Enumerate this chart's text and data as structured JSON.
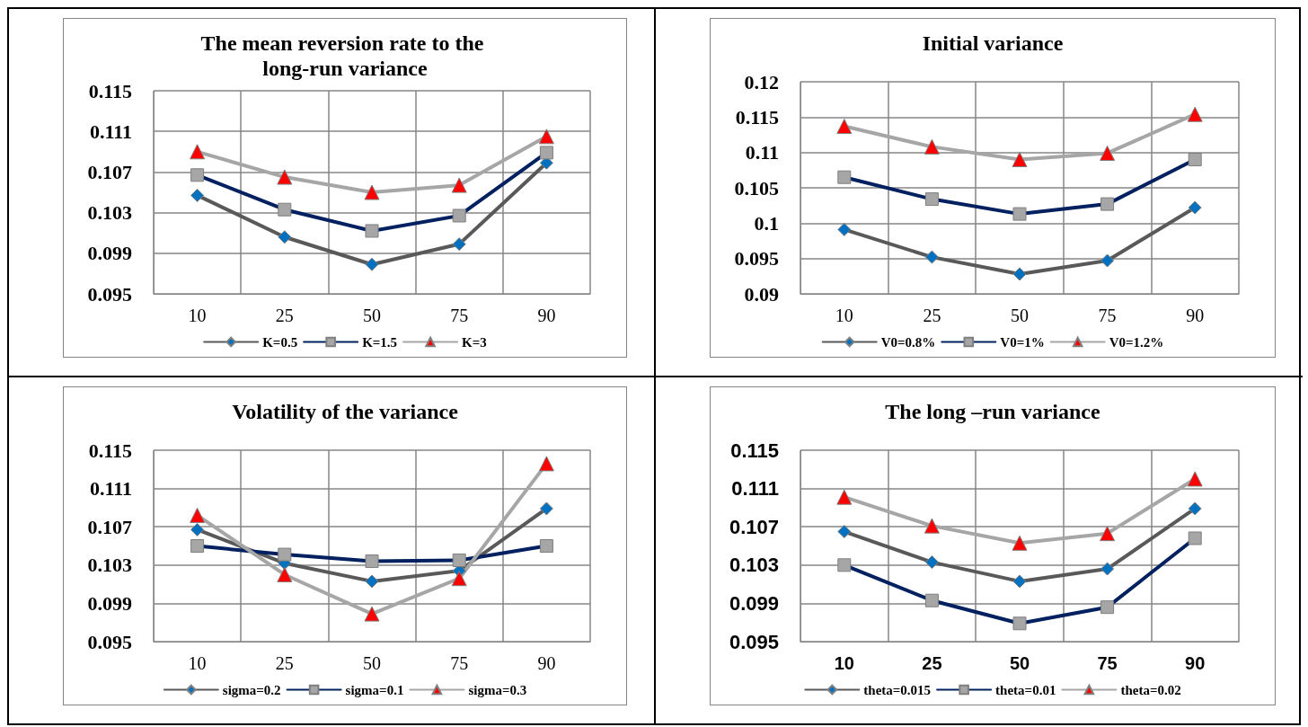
{
  "chart_data": [
    {
      "type": "line",
      "title": "The mean reversion rate to the long-run variance",
      "categories": [
        "10",
        "25",
        "50",
        "75",
        "90"
      ],
      "ylim": [
        0.095,
        0.115
      ],
      "yticks": [
        0.095,
        0.099,
        0.103,
        0.107,
        0.111,
        0.115
      ],
      "grid": true,
      "legend": "bottom",
      "series": [
        {
          "name": "K=0.5",
          "color": "#595959",
          "marker": "diamond",
          "colors": [
            "#0070c0",
            "#0070c0",
            "#0070c0",
            "#0070c0",
            "#0070c0"
          ],
          "values": [
            0.1047,
            0.1006,
            0.0979,
            0.0999,
            0.1079
          ]
        },
        {
          "name": "K=1.5",
          "color": "#002060",
          "marker": "square",
          "colors": [
            "#a6a6a6",
            "#a6a6a6",
            "#a6a6a6",
            "#a6a6a6",
            "#a6a6a6"
          ],
          "values": [
            0.1067,
            0.1033,
            0.1012,
            0.1027,
            0.1089
          ]
        },
        {
          "name": "K=3",
          "color": "#a6a6a6",
          "marker": "triangle",
          "colors": [
            "#ff0000",
            "#ff0000",
            "#ff0000",
            "#ff0000",
            "#ff0000"
          ],
          "values": [
            0.109,
            0.1065,
            0.105,
            0.1057,
            0.1105
          ]
        }
      ]
    },
    {
      "type": "line",
      "title": "Initial variance",
      "categories": [
        "10",
        "25",
        "50",
        "75",
        "90"
      ],
      "ylim": [
        0.09,
        0.12
      ],
      "yticks": [
        0.09,
        0.095,
        0.1,
        0.105,
        0.11,
        0.115,
        0.12
      ],
      "grid": true,
      "legend": "bottom",
      "series": [
        {
          "name": "V0=0.8%",
          "color": "#595959",
          "marker": "diamond",
          "colors": [
            "#0070c0",
            "#0070c0",
            "#0070c0",
            "#0070c0",
            "#0070c0"
          ],
          "values": [
            0.0991,
            0.0952,
            0.0928,
            0.0947,
            0.1022
          ]
        },
        {
          "name": "V0=1%",
          "color": "#002060",
          "marker": "square",
          "colors": [
            "#a6a6a6",
            "#a6a6a6",
            "#a6a6a6",
            "#a6a6a6",
            "#a6a6a6"
          ],
          "values": [
            0.1065,
            0.1034,
            0.1013,
            0.1027,
            0.109
          ]
        },
        {
          "name": "V0=1.2%",
          "color": "#a6a6a6",
          "marker": "triangle",
          "colors": [
            "#ff0000",
            "#ff0000",
            "#ff0000",
            "#ff0000",
            "#ff0000"
          ],
          "values": [
            0.1137,
            0.1108,
            0.109,
            0.1099,
            0.1154
          ]
        }
      ]
    },
    {
      "type": "line",
      "title": "Volatility of the variance",
      "categories": [
        "10",
        "25",
        "50",
        "75",
        "90"
      ],
      "ylim": [
        0.095,
        0.115
      ],
      "yticks": [
        0.095,
        0.099,
        0.103,
        0.107,
        0.111,
        0.115
      ],
      "grid": true,
      "legend": "bottom",
      "series": [
        {
          "name": "sigma=0.2",
          "color": "#595959",
          "marker": "diamond",
          "colors": [
            "#0070c0",
            "#0070c0",
            "#0070c0",
            "#0070c0",
            "#0070c0"
          ],
          "values": [
            0.1067,
            0.1032,
            0.1013,
            0.1024,
            0.1089
          ]
        },
        {
          "name": "sigma=0.1",
          "color": "#002060",
          "marker": "square",
          "colors": [
            "#a6a6a6",
            "#a6a6a6",
            "#a6a6a6",
            "#a6a6a6",
            "#a6a6a6"
          ],
          "values": [
            0.105,
            0.1041,
            0.1034,
            0.1035,
            0.105
          ]
        },
        {
          "name": "sigma=0.3",
          "color": "#a6a6a6",
          "marker": "triangle",
          "colors": [
            "#ff0000",
            "#ff0000",
            "#ff0000",
            "#ff0000",
            "#ff0000"
          ],
          "values": [
            0.1082,
            0.102,
            0.0979,
            0.1016,
            0.1136
          ]
        }
      ]
    },
    {
      "type": "line",
      "title": "The long –run variance",
      "categories": [
        "10",
        "25",
        "50",
        "75",
        "90"
      ],
      "ylim": [
        0.095,
        0.115
      ],
      "yticks": [
        0.095,
        0.099,
        0.103,
        0.107,
        0.111,
        0.115
      ],
      "grid": true,
      "legend": "bottom",
      "series": [
        {
          "name": "theta=0.015",
          "color": "#595959",
          "marker": "diamond",
          "colors": [
            "#0070c0",
            "#0070c0",
            "#0070c0",
            "#0070c0",
            "#0070c0"
          ],
          "values": [
            0.1065,
            0.1033,
            0.1013,
            0.1026,
            0.1089
          ]
        },
        {
          "name": "theta=0.01",
          "color": "#002060",
          "marker": "square",
          "colors": [
            "#a6a6a6",
            "#a6a6a6",
            "#a6a6a6",
            "#a6a6a6",
            "#a6a6a6"
          ],
          "values": [
            0.103,
            0.0993,
            0.0969,
            0.0986,
            0.1058
          ]
        },
        {
          "name": "theta=0.02",
          "color": "#a6a6a6",
          "marker": "triangle",
          "colors": [
            "#ff0000",
            "#ff0000",
            "#ff0000",
            "#ff0000",
            "#ff0000"
          ],
          "values": [
            0.1101,
            0.1071,
            0.1053,
            0.1063,
            0.112
          ]
        }
      ]
    }
  ]
}
